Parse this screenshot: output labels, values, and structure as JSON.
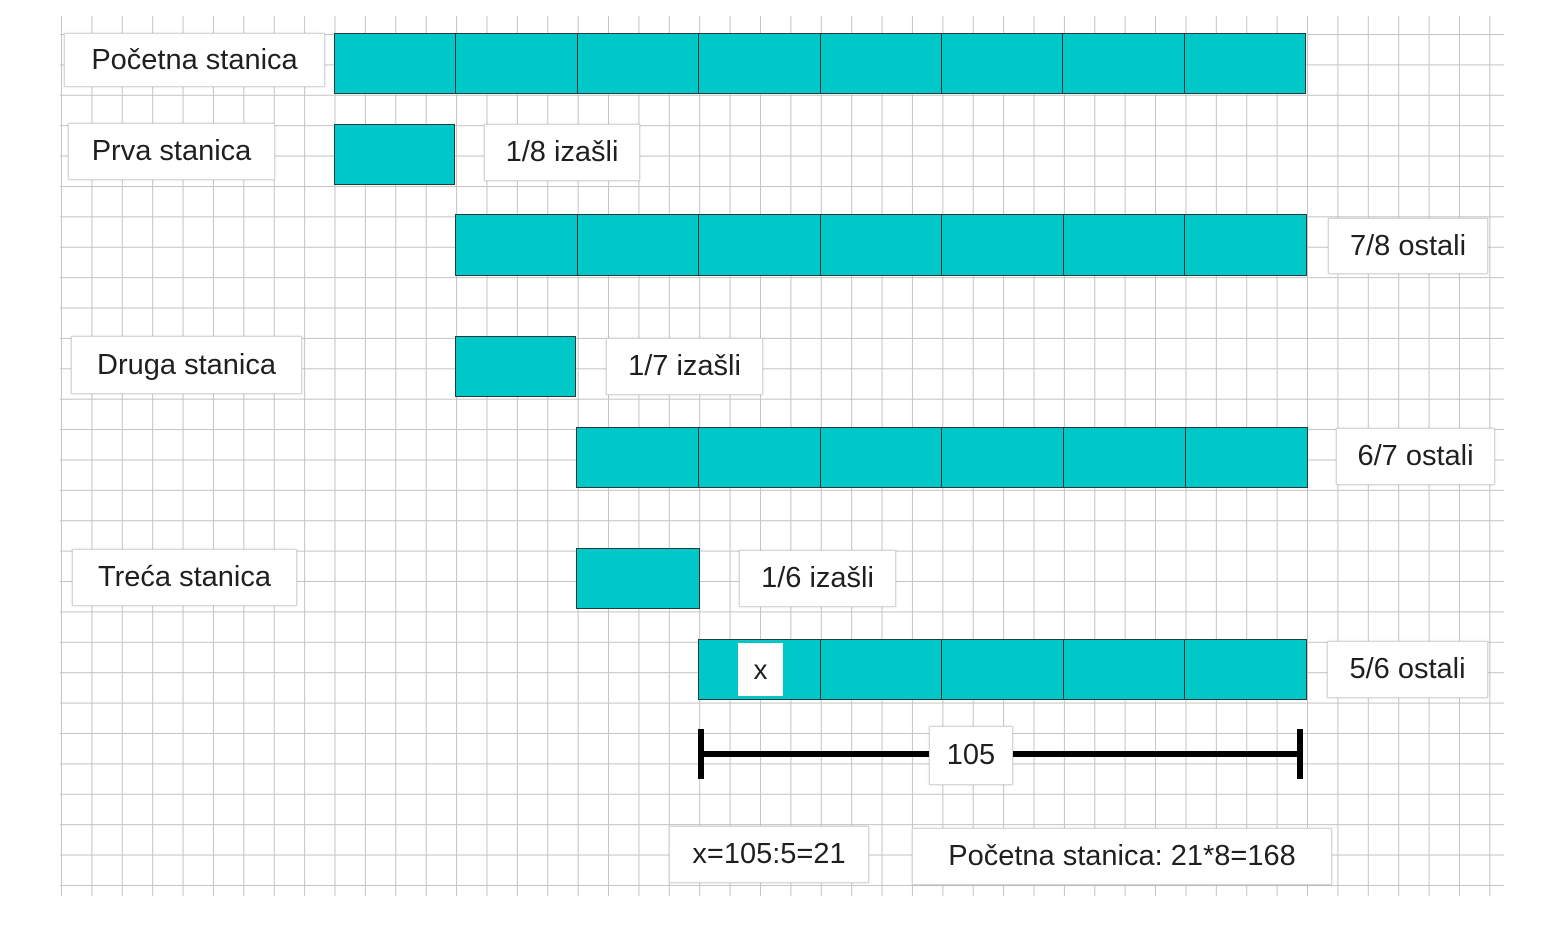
{
  "colors": {
    "bar_fill": "#00c8c8",
    "bar_border": "#1d3030",
    "grid": "#c4c4c4"
  },
  "labels": {
    "pocetna": "Početna stanica",
    "prva": "Prva stanica",
    "prva_izasli": "1/8 izašli",
    "prva_ostali": "7/8 ostali",
    "druga": "Druga stanica",
    "druga_izasli": "1/7 izašli",
    "druga_ostali": "6/7 ostali",
    "treca": "Treća stanica",
    "treca_izasli": "1/6 izašli",
    "treca_ostali": "5/6 ostali",
    "x_label": "x",
    "total_label": "105",
    "x_solution": "x=105:5=21",
    "final_solution": "Početna stanica: 21*8=168"
  },
  "bars": {
    "pocetna_segments": 8,
    "prva_izasli_segments": 1,
    "prva_ostali_segments": 7,
    "druga_izasli_segments": 1,
    "druga_ostali_segments": 6,
    "treca_izasli_segments": 1,
    "treca_ostali_segments": 5
  }
}
